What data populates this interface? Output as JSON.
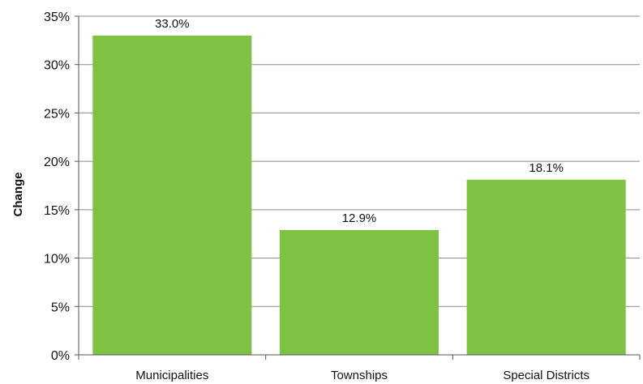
{
  "chart_data": {
    "type": "bar",
    "title": "",
    "xlabel": "",
    "ylabel": "Change",
    "categories": [
      "Municipalities",
      "Townships",
      "Special Districts"
    ],
    "values": [
      33.0,
      12.9,
      18.1
    ],
    "data_labels": [
      "33.0%",
      "12.9%",
      "18.1%"
    ],
    "ylim": [
      0,
      35
    ],
    "yticks": [
      0,
      5,
      10,
      15,
      20,
      25,
      30,
      35
    ],
    "ytick_labels": [
      "0%",
      "5%",
      "10%",
      "15%",
      "20%",
      "25%",
      "30%",
      "35%"
    ],
    "grid": true,
    "legend": "none",
    "bar_color": "#7dc242",
    "grid_color": "#8a8a8a",
    "axis_color": "#555555"
  }
}
